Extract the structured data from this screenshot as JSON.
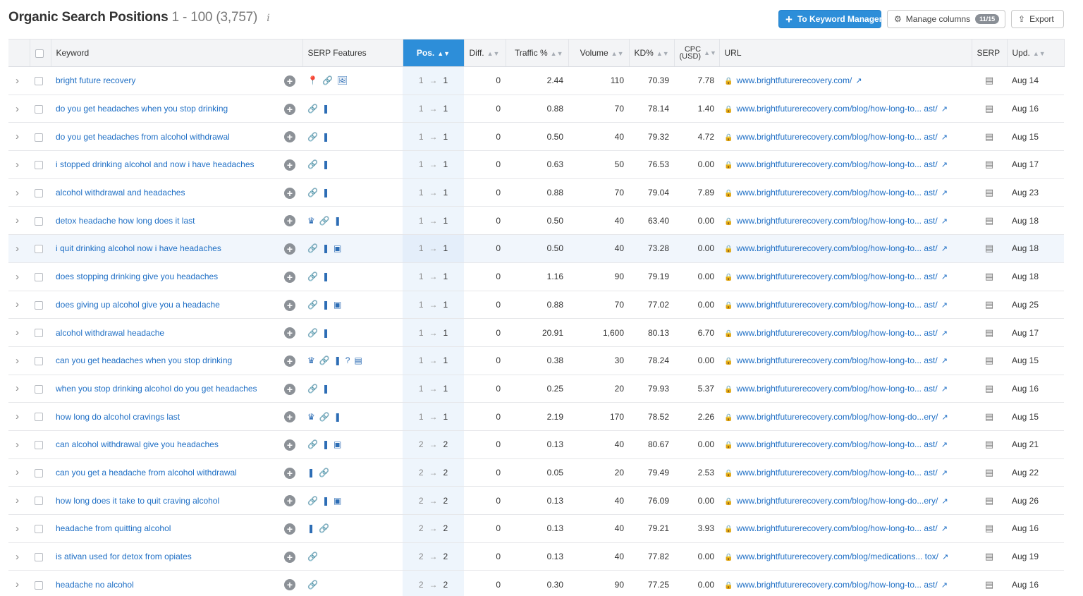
{
  "header": {
    "title": "Organic Search Positions",
    "range": "1 - 100 (3,757)",
    "info_symbol": "i",
    "to_keyword_manager": "To Keyword Manager",
    "manage_columns": "Manage columns",
    "columns_badge": "11/15",
    "export": "Export"
  },
  "columns": {
    "keyword": "Keyword",
    "serp_features": "SERP Features",
    "pos": "Pos.",
    "diff": "Diff.",
    "traffic": "Traffic %",
    "volume": "Volume",
    "kd": "KD%",
    "cpc_line1": "CPC",
    "cpc_line2": "(USD)",
    "url": "URL",
    "serp": "SERP",
    "upd": "Upd."
  },
  "icons": {
    "pin": "📍",
    "link": "🔗",
    "image": "🖼",
    "review": "❚",
    "crown": "♛",
    "video": "▣",
    "question": "?",
    "news": "▤"
  },
  "rows": [
    {
      "keyword": "bright future recovery",
      "features": [
        "pin",
        "link",
        "image"
      ],
      "prev": "1",
      "pos": "1",
      "diff": "0",
      "traffic": "2.44",
      "volume": "110",
      "kd": "70.39",
      "cpc": "7.78",
      "url": "www.brightfuturerecovery.com/",
      "upd": "Aug 14"
    },
    {
      "keyword": "do you get headaches when you stop drinking",
      "features": [
        "link",
        "review"
      ],
      "prev": "1",
      "pos": "1",
      "diff": "0",
      "traffic": "0.88",
      "volume": "70",
      "kd": "78.14",
      "cpc": "1.40",
      "url": "www.brightfuturerecovery.com/blog/how-long-to... ast/",
      "upd": "Aug 16"
    },
    {
      "keyword": "do you get headaches from alcohol withdrawal",
      "features": [
        "link",
        "review"
      ],
      "prev": "1",
      "pos": "1",
      "diff": "0",
      "traffic": "0.50",
      "volume": "40",
      "kd": "79.32",
      "cpc": "4.72",
      "url": "www.brightfuturerecovery.com/blog/how-long-to... ast/",
      "upd": "Aug 15"
    },
    {
      "keyword": "i stopped drinking alcohol and now i have headaches",
      "features": [
        "link",
        "review"
      ],
      "prev": "1",
      "pos": "1",
      "diff": "0",
      "traffic": "0.63",
      "volume": "50",
      "kd": "76.53",
      "cpc": "0.00",
      "url": "www.brightfuturerecovery.com/blog/how-long-to... ast/",
      "upd": "Aug 17"
    },
    {
      "keyword": "alcohol withdrawal and headaches",
      "features": [
        "link",
        "review"
      ],
      "prev": "1",
      "pos": "1",
      "diff": "0",
      "traffic": "0.88",
      "volume": "70",
      "kd": "79.04",
      "cpc": "7.89",
      "url": "www.brightfuturerecovery.com/blog/how-long-to... ast/",
      "upd": "Aug 23"
    },
    {
      "keyword": "detox headache how long does it last",
      "features": [
        "crown",
        "link",
        "review"
      ],
      "prev": "1",
      "pos": "1",
      "diff": "0",
      "traffic": "0.50",
      "volume": "40",
      "kd": "63.40",
      "cpc": "0.00",
      "url": "www.brightfuturerecovery.com/blog/how-long-to... ast/",
      "upd": "Aug 18"
    },
    {
      "keyword": "i quit drinking alcohol now i have headaches",
      "features": [
        "link",
        "review",
        "video"
      ],
      "prev": "1",
      "pos": "1",
      "diff": "0",
      "traffic": "0.50",
      "volume": "40",
      "kd": "73.28",
      "cpc": "0.00",
      "url": "www.brightfuturerecovery.com/blog/how-long-to... ast/",
      "upd": "Aug 18"
    },
    {
      "keyword": "does stopping drinking give you headaches",
      "features": [
        "link",
        "review"
      ],
      "prev": "1",
      "pos": "1",
      "diff": "0",
      "traffic": "1.16",
      "volume": "90",
      "kd": "79.19",
      "cpc": "0.00",
      "url": "www.brightfuturerecovery.com/blog/how-long-to... ast/",
      "upd": "Aug 18"
    },
    {
      "keyword": "does giving up alcohol give you a headache",
      "features": [
        "link",
        "review",
        "video"
      ],
      "prev": "1",
      "pos": "1",
      "diff": "0",
      "traffic": "0.88",
      "volume": "70",
      "kd": "77.02",
      "cpc": "0.00",
      "url": "www.brightfuturerecovery.com/blog/how-long-to... ast/",
      "upd": "Aug 25"
    },
    {
      "keyword": "alcohol withdrawal headache",
      "features": [
        "link",
        "review"
      ],
      "prev": "1",
      "pos": "1",
      "diff": "0",
      "traffic": "20.91",
      "volume": "1,600",
      "kd": "80.13",
      "cpc": "6.70",
      "url": "www.brightfuturerecovery.com/blog/how-long-to... ast/",
      "upd": "Aug 17"
    },
    {
      "keyword": "can you get headaches when you stop drinking",
      "features": [
        "crown",
        "link",
        "review",
        "question",
        "news"
      ],
      "prev": "1",
      "pos": "1",
      "diff": "0",
      "traffic": "0.38",
      "volume": "30",
      "kd": "78.24",
      "cpc": "0.00",
      "url": "www.brightfuturerecovery.com/blog/how-long-to... ast/",
      "upd": "Aug 15"
    },
    {
      "keyword": "when you stop drinking alcohol do you get headaches",
      "features": [
        "link",
        "review"
      ],
      "prev": "1",
      "pos": "1",
      "diff": "0",
      "traffic": "0.25",
      "volume": "20",
      "kd": "79.93",
      "cpc": "5.37",
      "url": "www.brightfuturerecovery.com/blog/how-long-to... ast/",
      "upd": "Aug 16"
    },
    {
      "keyword": "how long do alcohol cravings last",
      "features": [
        "crown",
        "link",
        "review"
      ],
      "prev": "1",
      "pos": "1",
      "diff": "0",
      "traffic": "2.19",
      "volume": "170",
      "kd": "78.52",
      "cpc": "2.26",
      "url": "www.brightfuturerecovery.com/blog/how-long-do...ery/",
      "upd": "Aug 15"
    },
    {
      "keyword": "can alcohol withdrawal give you headaches",
      "features": [
        "link",
        "review",
        "video"
      ],
      "prev": "2",
      "pos": "2",
      "diff": "0",
      "traffic": "0.13",
      "volume": "40",
      "kd": "80.67",
      "cpc": "0.00",
      "url": "www.brightfuturerecovery.com/blog/how-long-to... ast/",
      "upd": "Aug 21"
    },
    {
      "keyword": "can you get a headache from alcohol withdrawal",
      "features": [
        "review",
        "link"
      ],
      "prev": "2",
      "pos": "2",
      "diff": "0",
      "traffic": "0.05",
      "volume": "20",
      "kd": "79.49",
      "cpc": "2.53",
      "url": "www.brightfuturerecovery.com/blog/how-long-to... ast/",
      "upd": "Aug 22"
    },
    {
      "keyword": "how long does it take to quit craving alcohol",
      "features": [
        "link",
        "review",
        "video"
      ],
      "prev": "2",
      "pos": "2",
      "diff": "0",
      "traffic": "0.13",
      "volume": "40",
      "kd": "76.09",
      "cpc": "0.00",
      "url": "www.brightfuturerecovery.com/blog/how-long-do...ery/",
      "upd": "Aug 26"
    },
    {
      "keyword": "headache from quitting alcohol",
      "features": [
        "review",
        "link"
      ],
      "prev": "2",
      "pos": "2",
      "diff": "0",
      "traffic": "0.13",
      "volume": "40",
      "kd": "79.21",
      "cpc": "3.93",
      "url": "www.brightfuturerecovery.com/blog/how-long-to... ast/",
      "upd": "Aug 16"
    },
    {
      "keyword": "is ativan used for detox from opiates",
      "features": [
        "link"
      ],
      "prev": "2",
      "pos": "2",
      "diff": "0",
      "traffic": "0.13",
      "volume": "40",
      "kd": "77.82",
      "cpc": "0.00",
      "url": "www.brightfuturerecovery.com/blog/medications... tox/",
      "upd": "Aug 19"
    },
    {
      "keyword": "headache no alcohol",
      "features": [
        "link"
      ],
      "prev": "2",
      "pos": "2",
      "diff": "0",
      "traffic": "0.30",
      "volume": "90",
      "kd": "77.25",
      "cpc": "0.00",
      "url": "www.brightfuturerecovery.com/blog/how-long-to... ast/",
      "upd": "Aug 16"
    }
  ]
}
